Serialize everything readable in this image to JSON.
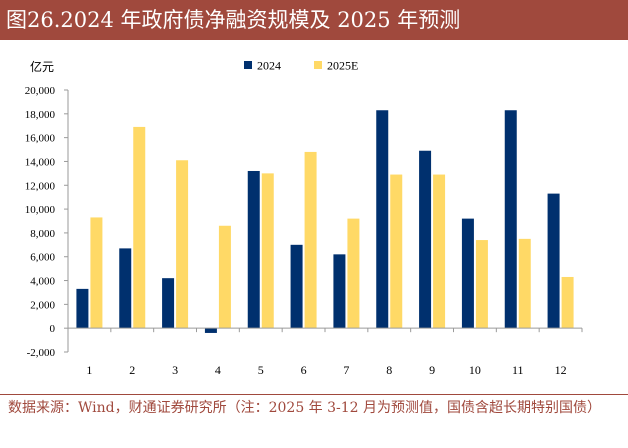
{
  "title": "图26.2024 年政府债净融资规模及 2025 年预测",
  "source": "数据来源：Wind，财通证券研究所（注：2025 年 3-12 月为预测值，国债含超长期特别国债）",
  "colors": {
    "title_bg": "#a0493d",
    "title_text": "#ffffff",
    "series_2024": "#00306e",
    "series_2025E": "#ffd966",
    "source_text": "#a0493d",
    "axis": "#9a9a9a"
  },
  "chart_data": {
    "type": "bar",
    "unit_label": "亿元",
    "categories": [
      "1",
      "2",
      "3",
      "4",
      "5",
      "6",
      "7",
      "8",
      "9",
      "10",
      "11",
      "12"
    ],
    "series": [
      {
        "name": "2024",
        "values": [
          3300,
          6700,
          4200,
          -400,
          13200,
          7000,
          6200,
          18300,
          14900,
          9200,
          18300,
          11300
        ]
      },
      {
        "name": "2025E",
        "values": [
          9300,
          16900,
          14100,
          8600,
          13000,
          14800,
          9200,
          12900,
          12900,
          7400,
          7500,
          4300
        ]
      }
    ],
    "y_ticks": [
      "-2,000",
      "0",
      "2,000",
      "4,000",
      "6,000",
      "8,000",
      "10,000",
      "12,000",
      "14,000",
      "16,000",
      "18,000",
      "20,000"
    ],
    "ylim": [
      -2000,
      20000
    ],
    "grid": false,
    "legend_position": "top-center"
  }
}
